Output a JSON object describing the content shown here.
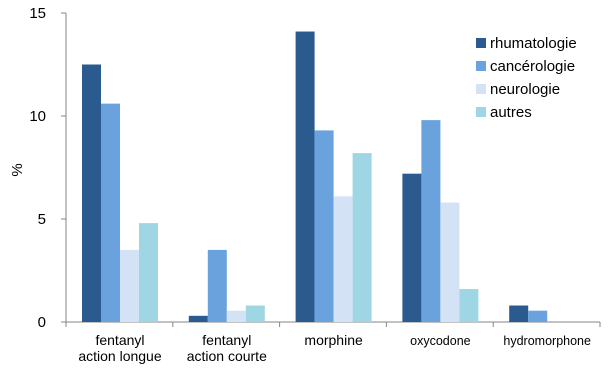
{
  "chart_data": {
    "type": "bar",
    "title": "",
    "xlabel": "",
    "ylabel": "%",
    "ylim": [
      0,
      15
    ],
    "yticks": [
      0,
      5,
      10,
      15
    ],
    "grid": false,
    "legend_position": "top-right",
    "categories": [
      [
        "fentanyl",
        "action longue"
      ],
      [
        "fentanyl",
        "action courte"
      ],
      [
        "morphine"
      ],
      [
        "oxycodone"
      ],
      [
        "hydromorphone"
      ]
    ],
    "series": [
      {
        "name": "rhumatologie",
        "color": "#2b5a8f",
        "values": [
          12.5,
          0.3,
          14.1,
          7.2,
          0.8
        ]
      },
      {
        "name": "cancérologie",
        "color": "#6aa2dd",
        "values": [
          10.6,
          3.5,
          9.3,
          9.8,
          0.55
        ]
      },
      {
        "name": "neurologie",
        "color": "#d3e2f4",
        "values": [
          3.5,
          0.55,
          6.1,
          5.8,
          0
        ]
      },
      {
        "name": "autres",
        "color": "#9ed7e3",
        "values": [
          4.8,
          0.8,
          8.2,
          1.6,
          0
        ]
      }
    ]
  }
}
